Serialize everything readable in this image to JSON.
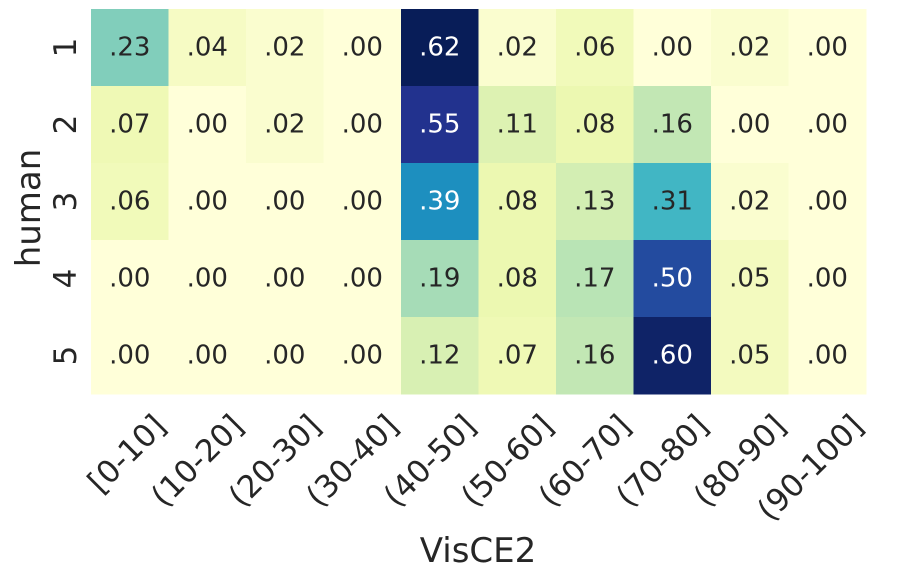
{
  "chart_data": {
    "type": "heatmap",
    "xlabel": "VisCE2",
    "ylabel": "human",
    "x_categories": [
      "[0-10]",
      "(10-20]",
      "(20-30]",
      "(30-40]",
      "(40-50]",
      "(50-60]",
      "(60-70]",
      "(70-80]",
      "(80-90]",
      "(90-100]"
    ],
    "y_categories": [
      "1",
      "2",
      "3",
      "4",
      "5"
    ],
    "values": [
      [
        0.23,
        0.04,
        0.02,
        0.0,
        0.62,
        0.02,
        0.06,
        0.0,
        0.02,
        0.0
      ],
      [
        0.07,
        0.0,
        0.02,
        0.0,
        0.55,
        0.11,
        0.08,
        0.16,
        0.0,
        0.0
      ],
      [
        0.06,
        0.0,
        0.0,
        0.0,
        0.39,
        0.08,
        0.13,
        0.31,
        0.02,
        0.0
      ],
      [
        0.0,
        0.0,
        0.0,
        0.0,
        0.19,
        0.08,
        0.17,
        0.5,
        0.05,
        0.0
      ],
      [
        0.0,
        0.0,
        0.0,
        0.0,
        0.12,
        0.07,
        0.16,
        0.6,
        0.05,
        0.0
      ]
    ],
    "value_range": [
      0.0,
      0.62
    ],
    "colormap": "YlGnBu",
    "colormap_stops": [
      "#ffffd9",
      "#edf8b1",
      "#c7e9b4",
      "#7fcdbb",
      "#41b6c4",
      "#1d91c0",
      "#225ea8",
      "#253494",
      "#081d58"
    ],
    "text_color_dark": "#262626",
    "text_color_light": "#ffffff",
    "colorbar": false,
    "grid": false
  }
}
